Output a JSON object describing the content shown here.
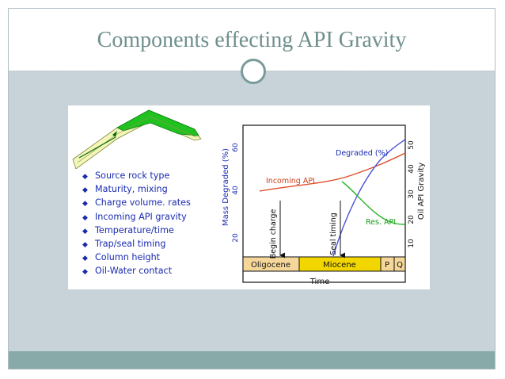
{
  "slide": {
    "title": "Components effecting API Gravity"
  },
  "bullets": [
    "Source rock type",
    "Maturity, mixing",
    "Charge volume. rates",
    "Incoming API gravity",
    "Temperature/time",
    "Trap/seal timing",
    "Column height",
    "Oil-Water contact"
  ],
  "chart": {
    "left_axis_label": "Mass Degraded (%)",
    "left_ticks": [
      "20",
      "40",
      "60"
    ],
    "right_axis_label": "Oil API Gravity",
    "right_ticks": [
      "10",
      "20",
      "30",
      "40",
      "50"
    ],
    "x_label": "Time",
    "periods": [
      "Oligocene",
      "Miocene",
      "P",
      "Q"
    ],
    "curve_labels": {
      "degraded": "Degraded (%)",
      "incoming": "Incoming API",
      "reservoir": "Res. API"
    },
    "events": {
      "begin_charge": "Begin charge",
      "seal_timing": "Seal timing"
    },
    "colors": {
      "degraded": "#4a55d6",
      "incoming": "#e0502a",
      "reservoir": "#2ab52a",
      "oligocene": "#f5d79a",
      "miocene": "#f2d600",
      "pq": "#f5d79a",
      "axis_text": "#1a2bb0",
      "anticline": "#1fc21f"
    }
  }
}
